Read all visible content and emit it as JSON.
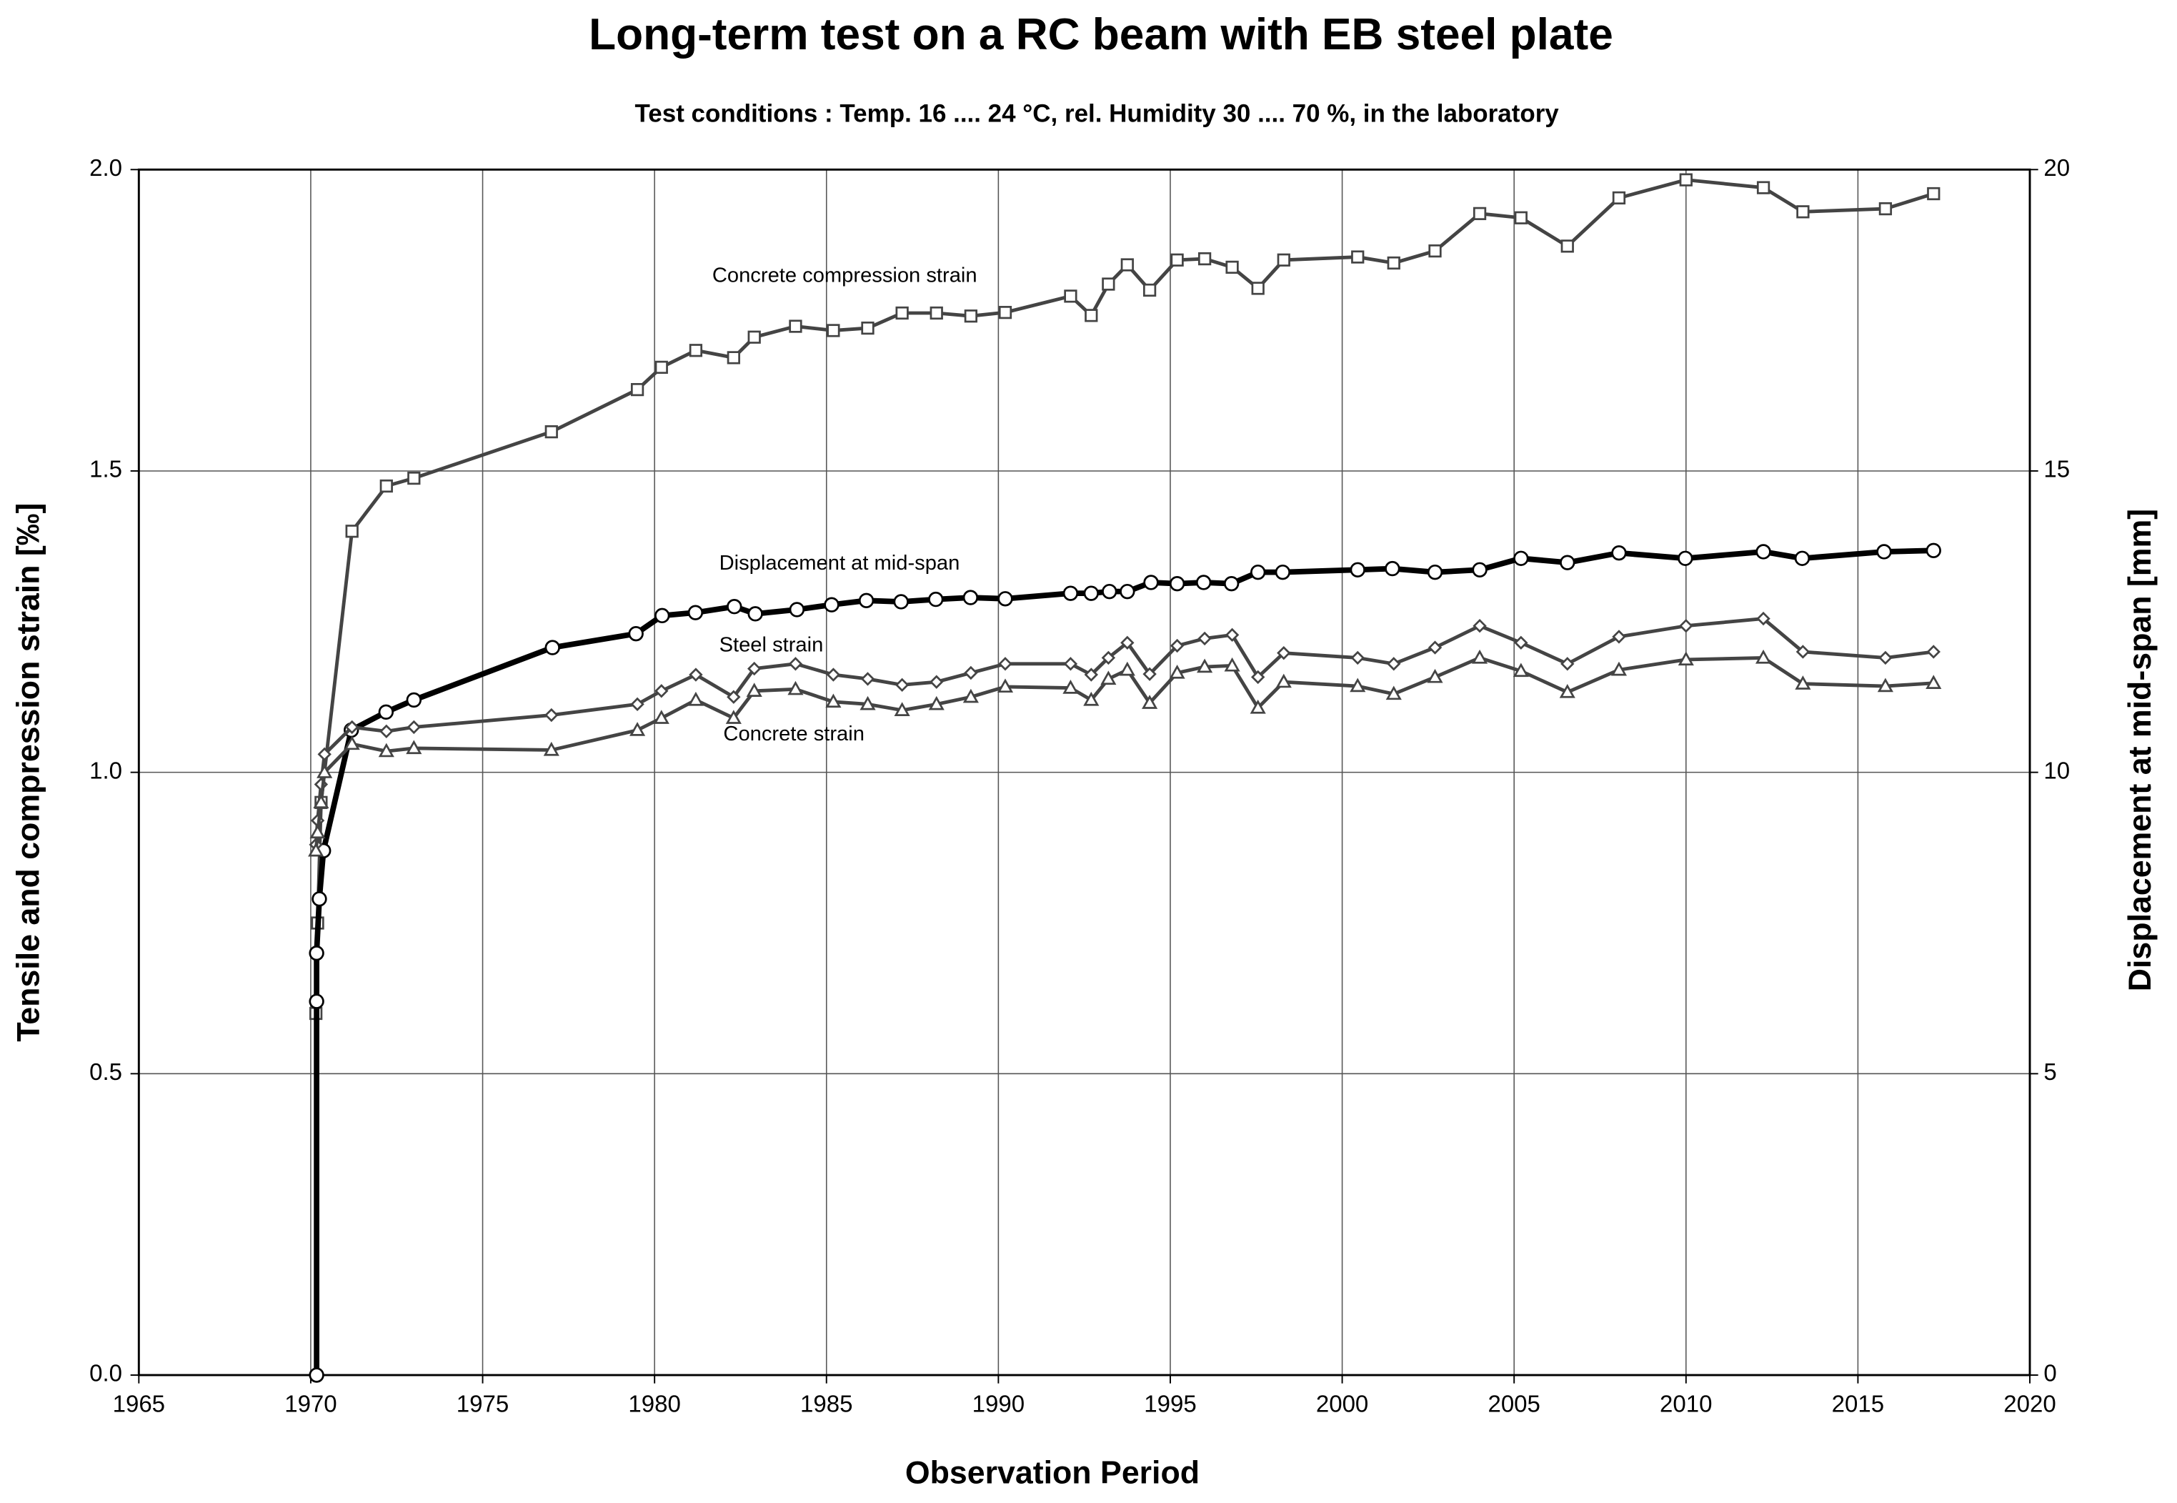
{
  "chart_data": {
    "type": "line",
    "title": "Long-term test on a RC beam with EB steel plate",
    "subtitle": "Test conditions : Temp. 16 .... 24 °C, rel. Humidity 30 .... 70 %, in the laboratory",
    "xlabel": "Observation Period",
    "ylabel": "Tensile and compression strain [‰]",
    "y2label": "Displacement at mid-span  [mm]",
    "xlim": [
      1965,
      2020
    ],
    "xticks": [
      1965,
      1970,
      1975,
      1980,
      1985,
      1990,
      1995,
      2000,
      2005,
      2010,
      2015,
      2020
    ],
    "ylim": [
      0,
      2
    ],
    "yticks": [
      {
        "value": 0,
        "label": "0.0"
      },
      0.5,
      {
        "value": 1,
        "label": "1.0"
      },
      1.5,
      {
        "value": 2,
        "label": "2.0"
      }
    ],
    "y2lim": [
      0,
      20
    ],
    "y2ticks": [
      0,
      5,
      10,
      15,
      20
    ],
    "grid": true,
    "series": [
      {
        "name": "Concrete compression strain",
        "color": "#444444",
        "marker": "square",
        "linewidth": 2.5,
        "x": [
          1970.15,
          1970.2,
          1970.3,
          1971.2,
          1972.2,
          1973.0,
          1977.0,
          1979.5,
          1980.2,
          1981.2,
          1982.3,
          1982.9,
          1984.1,
          1985.2,
          1986.2,
          1987.2,
          1988.2,
          1989.2,
          1990.2,
          1992.1,
          1992.7,
          1993.2,
          1993.75,
          1994.4,
          1995.2,
          1996.0,
          1996.8,
          1997.55,
          1998.3,
          2000.45,
          2001.5,
          2002.7,
          2004.0,
          2005.2,
          2006.55,
          2008.05,
          2010.0,
          2012.25,
          2013.4,
          2015.8,
          2017.2
        ],
        "values": [
          0.6,
          0.75,
          0.95,
          1.4,
          1.475,
          1.488,
          1.565,
          1.635,
          1.672,
          1.7,
          1.688,
          1.722,
          1.74,
          1.733,
          1.737,
          1.762,
          1.762,
          1.757,
          1.763,
          1.79,
          1.758,
          1.81,
          1.842,
          1.8,
          1.85,
          1.852,
          1.838,
          1.803,
          1.85,
          1.855,
          1.845,
          1.865,
          1.927,
          1.92,
          1.873,
          1.953,
          1.983,
          1.97,
          1.93,
          1.935,
          1.96
        ]
      },
      {
        "name": "Displacement at mid-span",
        "color": "#000000",
        "marker": "circle",
        "linewidth": 4,
        "axis": "y2",
        "x": [
          1970.17,
          1970.17,
          1970.17,
          1970.25,
          1970.37,
          1971.18,
          1972.19,
          1973.0,
          1977.03,
          1979.46,
          1980.22,
          1981.19,
          1982.32,
          1982.93,
          1984.14,
          1985.15,
          1986.16,
          1987.17,
          1988.18,
          1989.19,
          1990.2,
          1992.1,
          1992.7,
          1993.23,
          1993.75,
          1994.44,
          1995.2,
          1995.97,
          1996.78,
          1997.55,
          1998.27,
          2000.45,
          2001.46,
          2002.7,
          2004.0,
          2005.2,
          2006.55,
          2008.05,
          2009.98,
          2012.25,
          2013.38,
          2015.76,
          2017.2
        ],
        "values": [
          0,
          6.2,
          7.0,
          7.9,
          8.7,
          10.7,
          11.0,
          11.2,
          12.07,
          12.3,
          12.6,
          12.65,
          12.75,
          12.63,
          12.7,
          12.78,
          12.85,
          12.83,
          12.87,
          12.9,
          12.88,
          12.97,
          12.97,
          13.0,
          13.0,
          13.15,
          13.13,
          13.15,
          13.13,
          13.32,
          13.32,
          13.36,
          13.38,
          13.32,
          13.36,
          13.55,
          13.48,
          13.64,
          13.55,
          13.66,
          13.55,
          13.66,
          13.68
        ]
      },
      {
        "name": "Steel strain",
        "color": "#444444",
        "marker": "diamond",
        "linewidth": 2.5,
        "x": [
          1970.15,
          1970.2,
          1970.3,
          1970.4,
          1971.2,
          1972.2,
          1973.0,
          1977.0,
          1979.5,
          1980.2,
          1981.2,
          1982.3,
          1982.9,
          1984.1,
          1985.2,
          1986.2,
          1987.2,
          1988.2,
          1989.2,
          1990.2,
          1992.1,
          1992.7,
          1993.2,
          1993.75,
          1994.4,
          1995.2,
          1996.0,
          1996.8,
          1997.55,
          1998.3,
          2000.45,
          2001.5,
          2002.7,
          2004.0,
          2005.2,
          2006.55,
          2008.05,
          2010.0,
          2012.25,
          2013.4,
          2015.8,
          2017.2
        ],
        "values": [
          0.88,
          0.92,
          0.98,
          1.03,
          1.075,
          1.068,
          1.075,
          1.095,
          1.113,
          1.135,
          1.162,
          1.125,
          1.172,
          1.18,
          1.162,
          1.155,
          1.145,
          1.15,
          1.165,
          1.18,
          1.18,
          1.162,
          1.19,
          1.215,
          1.163,
          1.21,
          1.222,
          1.228,
          1.158,
          1.198,
          1.19,
          1.18,
          1.207,
          1.243,
          1.215,
          1.18,
          1.225,
          1.243,
          1.255,
          1.2,
          1.19,
          1.2
        ]
      },
      {
        "name": "Concrete strain",
        "color": "#444444",
        "marker": "triangle",
        "linewidth": 2.5,
        "x": [
          1970.15,
          1970.2,
          1970.3,
          1970.4,
          1971.2,
          1972.2,
          1973.0,
          1977.0,
          1979.5,
          1980.2,
          1981.2,
          1982.3,
          1982.9,
          1984.1,
          1985.2,
          1986.2,
          1987.2,
          1988.2,
          1989.2,
          1990.2,
          1992.1,
          1992.7,
          1993.2,
          1993.75,
          1994.4,
          1995.2,
          1996.0,
          1996.8,
          1997.55,
          1998.3,
          2000.45,
          2001.5,
          2002.7,
          2004.0,
          2005.2,
          2006.55,
          2008.05,
          2010.0,
          2012.25,
          2013.4,
          2015.8,
          2017.2
        ],
        "values": [
          0.87,
          0.9,
          0.95,
          1.0,
          1.047,
          1.035,
          1.04,
          1.037,
          1.07,
          1.09,
          1.12,
          1.09,
          1.135,
          1.138,
          1.117,
          1.113,
          1.103,
          1.113,
          1.125,
          1.142,
          1.14,
          1.12,
          1.155,
          1.17,
          1.115,
          1.165,
          1.175,
          1.177,
          1.107,
          1.15,
          1.143,
          1.13,
          1.158,
          1.19,
          1.168,
          1.133,
          1.17,
          1.187,
          1.19,
          1.147,
          1.143,
          1.148
        ]
      }
    ]
  }
}
